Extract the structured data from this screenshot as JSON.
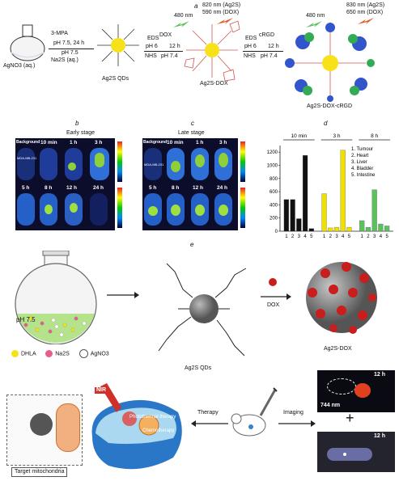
{
  "panel_labels": {
    "a": "a",
    "b": "b",
    "c": "c",
    "d": "d",
    "e": "e"
  },
  "panel_a": {
    "flask_label": "AgNO3 (aq.)",
    "step1_top": "3-MPA",
    "step1_mid": "pH 7.5, 24 h",
    "step1_bot1": "pH 7.5",
    "step1_bot2": "Na2S (aq.)",
    "qd_label": "Ag2S QDs",
    "step2_top1": "EDS",
    "step2_top2": "DOX",
    "step2_mid1": "pH 6",
    "step2_mid2": "12 h",
    "step2_bot1": "NHS",
    "step2_bot2": "pH 7.4",
    "dox_label": "Ag2S-DOX",
    "step3_top1": "EDS",
    "step3_top2": "cRGD",
    "step3_mid1": "pH 6",
    "step3_mid2": "12 h",
    "step3_bot1": "NHS",
    "step3_bot2": "pH 7.4",
    "crgd_label": "Ag2S-DOX-cRGD",
    "light1": "480 nm",
    "light2a": "820 nm (Ag2S)",
    "light2b": "590 nm (DOX)",
    "light3": "480 nm",
    "light4a": "830 nm (Ag2S)",
    "light4b": "650 nm (DOX)"
  },
  "panel_b": {
    "title": "Early stage",
    "times_top": [
      "Background",
      "10 min",
      "1 h",
      "3 h"
    ],
    "times_bottom": [
      "5 h",
      "8 h",
      "12 h",
      "24 h"
    ],
    "cell_label": "MDA-MB-231"
  },
  "panel_c": {
    "title": "Late stage",
    "times_top": [
      "Background",
      "10 min",
      "1 h",
      "3 h"
    ],
    "times_bottom": [
      "5 h",
      "8 h",
      "12 h",
      "24 h"
    ],
    "cell_label": "MDA-MB-231"
  },
  "chart_data": {
    "type": "bar",
    "groups": [
      "10 min",
      "3 h",
      "8 h"
    ],
    "categories": [
      "1",
      "2",
      "3",
      "4",
      "5"
    ],
    "series": [
      {
        "name": "10 min",
        "color": "#111111",
        "values": [
          480,
          480,
          190,
          1150,
          40
        ]
      },
      {
        "name": "3 h",
        "color": "#f0e000",
        "values": [
          570,
          50,
          60,
          1230,
          60
        ]
      },
      {
        "name": "8 h",
        "color": "#5cc05c",
        "values": [
          160,
          60,
          630,
          110,
          80
        ]
      }
    ],
    "ylim": [
      0,
      1300
    ],
    "yticks": [
      0,
      200,
      400,
      600,
      800,
      1000,
      1200
    ],
    "legend": [
      "1. Tumour",
      "2. Heart",
      "3. Liver",
      "4. Bladder",
      "5. Intestine"
    ],
    "legend_position": "top-right"
  },
  "panel_e": {
    "flask_ph": "pH 7.5",
    "reagent_dhla": "DHLA",
    "reagent_na2s": "Na2S",
    "reagent_agno3": "AgNO3",
    "qd_label": "Ag2S QDs",
    "dox_arrow": "DOX",
    "dox_label": "Ag2S-DOX",
    "target_label": "Target mitochondria",
    "nir_label": "NIR",
    "photothermal": "Photothermal therapy",
    "chemo": "Chemotherapy",
    "therapy_label": "Therapy",
    "imaging_label": "Imaging",
    "img1_time": "12 h",
    "img1_wave": "744 nm",
    "img2_time": "12 h"
  },
  "colors": {
    "dhla": "#f4e21a",
    "na2s": "#e85c8f",
    "agno3": "#ffffff",
    "qd": "#777777",
    "dox": "#c81e1e"
  }
}
